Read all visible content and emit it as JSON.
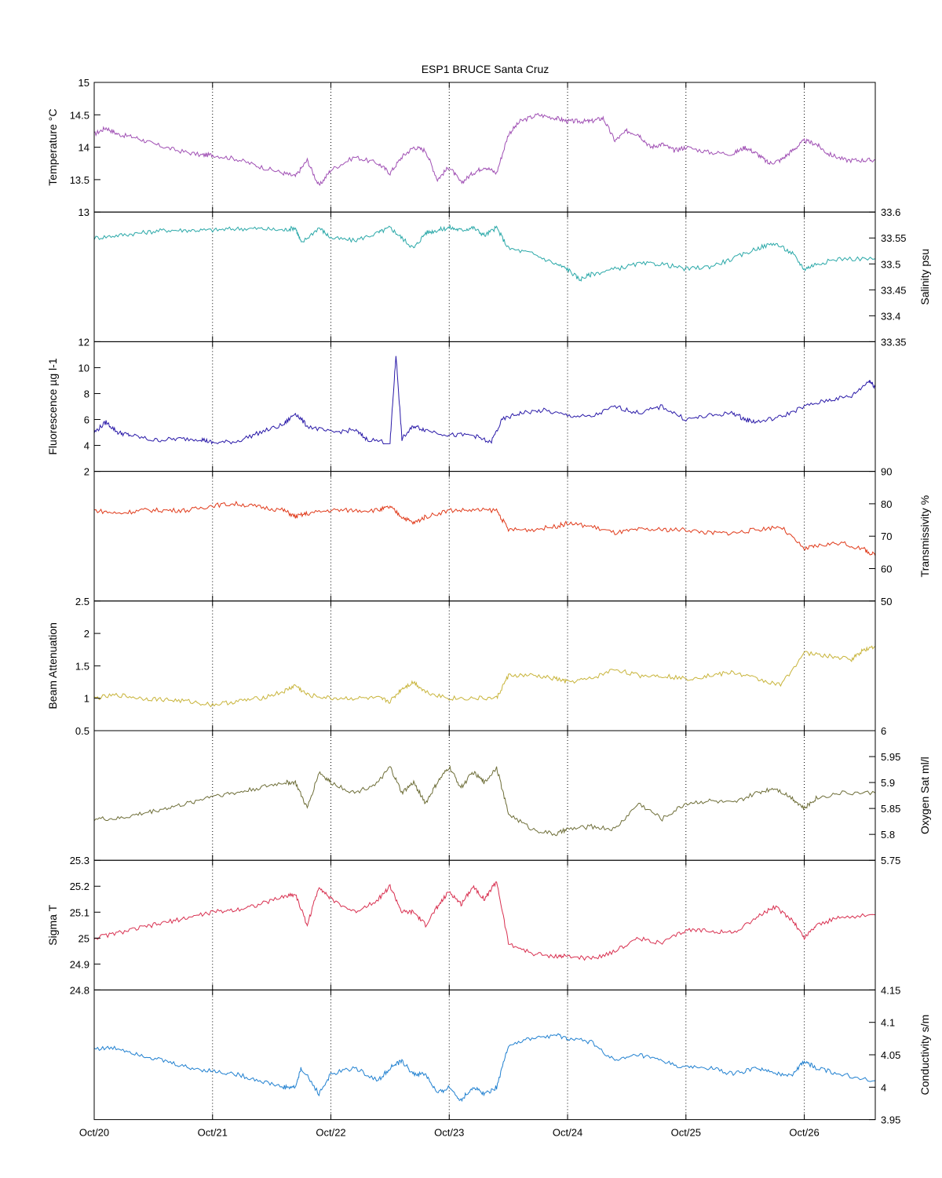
{
  "title": "ESP1 BRUCE Santa Cruz",
  "x_ticks": [
    "Oct/20",
    "Oct/21",
    "Oct/22",
    "Oct/23",
    "Oct/24",
    "Oct/25",
    "Oct/26"
  ],
  "chart_data": {
    "type": "line",
    "title": "ESP1 BRUCE Santa Cruz",
    "x_unit": "day",
    "xlim": [
      "Oct/20",
      "Oct/26 ~15:00"
    ],
    "grid": "vertical dotted at each day tick",
    "panels": [
      {
        "ylabel": "Temperature °C",
        "axis": "left",
        "ylim": [
          13,
          15
        ],
        "yticks": [
          "13",
          "13.5",
          "14",
          "14.5",
          "15"
        ],
        "color": "#a050b4",
        "series": [
          {
            "x": [
              0.0,
              0.1,
              0.2,
              0.35,
              0.5,
              0.7,
              0.9,
              1.0,
              1.2,
              1.4,
              1.6,
              1.7,
              1.8,
              1.9,
              2.0,
              2.2,
              2.4,
              2.5,
              2.6,
              2.7,
              2.8,
              2.9,
              3.0,
              3.1,
              3.2,
              3.3,
              3.4,
              3.5,
              3.6,
              3.75,
              3.9,
              4.0,
              4.1,
              4.2,
              4.3,
              4.4,
              4.5,
              4.6,
              4.7,
              4.8,
              4.9,
              5.0,
              5.2,
              5.4,
              5.5,
              5.6,
              5.7,
              5.8,
              5.9,
              6.0,
              6.1,
              6.2,
              6.35,
              6.5,
              6.6
            ],
            "y": [
              14.2,
              14.3,
              14.2,
              14.15,
              14.05,
              13.95,
              13.88,
              13.88,
              13.82,
              13.7,
              13.6,
              13.55,
              13.8,
              13.4,
              13.65,
              13.85,
              13.75,
              13.6,
              13.85,
              14.0,
              13.95,
              13.5,
              13.7,
              13.45,
              13.6,
              13.7,
              13.6,
              14.2,
              14.4,
              14.5,
              14.45,
              14.4,
              14.4,
              14.4,
              14.45,
              14.1,
              14.25,
              14.2,
              14.0,
              14.05,
              13.95,
              14.0,
              13.92,
              13.9,
              14.0,
              13.9,
              13.75,
              13.8,
              13.95,
              14.1,
              14.05,
              13.9,
              13.8,
              13.8,
              13.8
            ]
          }
        ]
      },
      {
        "ylabel": "Salinity psu",
        "axis": "right",
        "ylim": [
          33.35,
          33.6
        ],
        "yticks": [
          "33.35",
          "33.4",
          "33.45",
          "33.5",
          "33.55",
          "33.6"
        ],
        "color": "#2aa8a8",
        "series": [
          {
            "x": [
              0.0,
              0.2,
              0.4,
              0.6,
              0.8,
              1.0,
              1.2,
              1.4,
              1.6,
              1.7,
              1.75,
              1.9,
              2.0,
              2.2,
              2.4,
              2.5,
              2.6,
              2.7,
              2.8,
              2.9,
              3.0,
              3.1,
              3.2,
              3.3,
              3.4,
              3.5,
              3.7,
              3.9,
              4.0,
              4.1,
              4.2,
              4.4,
              4.6,
              4.8,
              5.0,
              5.2,
              5.4,
              5.6,
              5.75,
              5.9,
              6.0,
              6.1,
              6.3,
              6.6
            ],
            "y": [
              33.55,
              33.555,
              33.56,
              33.565,
              33.565,
              33.565,
              33.568,
              33.568,
              33.565,
              33.57,
              33.54,
              33.57,
              33.55,
              33.545,
              33.56,
              33.57,
              33.55,
              33.53,
              33.56,
              33.565,
              33.57,
              33.565,
              33.57,
              33.555,
              33.57,
              33.53,
              33.52,
              33.5,
              33.49,
              33.47,
              33.48,
              33.49,
              33.5,
              33.5,
              33.49,
              33.495,
              33.51,
              33.53,
              33.54,
              33.52,
              33.49,
              33.5,
              33.51,
              33.51
            ]
          }
        ]
      },
      {
        "ylabel": "Fluorescence µg l-1",
        "axis": "left",
        "ylim": [
          2,
          12
        ],
        "yticks": [
          "2",
          "4",
          "6",
          "8",
          "10",
          "12"
        ],
        "color": "#2a1aa8",
        "series": [
          {
            "x": [
              0.0,
              0.1,
              0.2,
              0.3,
              0.5,
              0.7,
              0.9,
              1.0,
              1.2,
              1.4,
              1.6,
              1.7,
              1.8,
              2.0,
              2.2,
              2.3,
              2.5,
              2.55,
              2.6,
              2.7,
              2.8,
              3.0,
              3.2,
              3.35,
              3.45,
              3.6,
              3.8,
              4.0,
              4.2,
              4.4,
              4.6,
              4.8,
              5.0,
              5.2,
              5.4,
              5.5,
              5.6,
              5.8,
              6.0,
              6.2,
              6.4,
              6.55,
              6.6
            ],
            "y": [
              5.0,
              5.8,
              5.0,
              4.8,
              4.4,
              4.5,
              4.5,
              4.2,
              4.3,
              5.0,
              5.6,
              6.5,
              5.5,
              5.0,
              5.2,
              4.5,
              4.2,
              11.0,
              4.5,
              5.5,
              5.2,
              4.8,
              4.8,
              4.2,
              6.0,
              6.5,
              6.7,
              6.3,
              6.2,
              7.0,
              6.5,
              7.0,
              6.0,
              6.3,
              6.5,
              6.0,
              5.8,
              6.2,
              7.0,
              7.5,
              7.8,
              9.0,
              8.5
            ]
          }
        ]
      },
      {
        "ylabel": "Transmissivity %",
        "axis": "right",
        "ylim": [
          50,
          90
        ],
        "yticks": [
          "50",
          "60",
          "70",
          "80",
          "90"
        ],
        "color": "#e03a1a",
        "series": [
          {
            "x": [
              0.0,
              0.2,
              0.4,
              0.6,
              0.8,
              1.0,
              1.2,
              1.4,
              1.6,
              1.7,
              1.8,
              2.0,
              2.2,
              2.4,
              2.5,
              2.6,
              2.7,
              2.8,
              3.0,
              3.2,
              3.4,
              3.5,
              3.7,
              3.9,
              4.0,
              4.2,
              4.4,
              4.6,
              4.8,
              5.0,
              5.2,
              5.4,
              5.6,
              5.8,
              6.0,
              6.1,
              6.3,
              6.5,
              6.6
            ],
            "y": [
              78,
              77,
              78,
              78,
              78,
              79.5,
              80,
              79,
              78,
              76,
              77,
              78,
              78,
              78,
              79,
              76,
              74,
              76,
              78,
              78,
              78,
              72,
              72,
              73,
              74,
              73,
              71,
              72,
              72,
              72,
              71,
              71,
              72,
              73,
              66,
              67,
              68,
              66,
              64
            ]
          }
        ]
      },
      {
        "ylabel": "Beam Attenuation",
        "axis": "left",
        "ylim": [
          0.5,
          2.5
        ],
        "yticks": [
          "0.5",
          "1",
          "1.5",
          "2",
          "2.5"
        ],
        "color": "#c8b43a",
        "series": [
          {
            "x": [
              0.0,
              0.2,
              0.4,
              0.6,
              0.8,
              1.0,
              1.2,
              1.4,
              1.6,
              1.7,
              1.8,
              2.0,
              2.2,
              2.4,
              2.5,
              2.6,
              2.7,
              2.8,
              3.0,
              3.2,
              3.4,
              3.5,
              3.7,
              3.9,
              4.0,
              4.2,
              4.4,
              4.6,
              4.8,
              5.0,
              5.2,
              5.4,
              5.6,
              5.8,
              6.0,
              6.2,
              6.4,
              6.5,
              6.6
            ],
            "y": [
              1.0,
              1.05,
              1.0,
              0.98,
              0.95,
              0.9,
              0.95,
              1.0,
              1.1,
              1.2,
              1.05,
              1.0,
              1.0,
              1.0,
              0.95,
              1.15,
              1.25,
              1.1,
              1.0,
              1.0,
              1.0,
              1.35,
              1.35,
              1.3,
              1.25,
              1.3,
              1.45,
              1.35,
              1.35,
              1.3,
              1.35,
              1.4,
              1.3,
              1.2,
              1.7,
              1.65,
              1.6,
              1.75,
              1.8
            ]
          }
        ]
      },
      {
        "ylabel": "Oxygen Sat ml/l",
        "axis": "right",
        "ylim": [
          5.75,
          6
        ],
        "yticks": [
          "5.75",
          "5.8",
          "5.85",
          "5.9",
          "5.95",
          "6"
        ],
        "color": "#6e6e38",
        "series": [
          {
            "x": [
              0.0,
              0.2,
              0.4,
              0.6,
              0.8,
              1.0,
              1.2,
              1.4,
              1.6,
              1.7,
              1.8,
              1.9,
              2.0,
              2.2,
              2.4,
              2.5,
              2.6,
              2.7,
              2.8,
              2.9,
              3.0,
              3.1,
              3.2,
              3.3,
              3.4,
              3.5,
              3.7,
              3.9,
              4.0,
              4.2,
              4.4,
              4.6,
              4.8,
              5.0,
              5.2,
              5.4,
              5.6,
              5.75,
              5.9,
              6.0,
              6.1,
              6.3,
              6.6
            ],
            "y": [
              5.83,
              5.83,
              5.84,
              5.85,
              5.86,
              5.875,
              5.88,
              5.89,
              5.9,
              5.9,
              5.85,
              5.92,
              5.9,
              5.88,
              5.9,
              5.93,
              5.88,
              5.9,
              5.86,
              5.9,
              5.93,
              5.89,
              5.92,
              5.9,
              5.93,
              5.84,
              5.81,
              5.8,
              5.81,
              5.815,
              5.81,
              5.86,
              5.83,
              5.86,
              5.865,
              5.86,
              5.88,
              5.89,
              5.87,
              5.85,
              5.87,
              5.88,
              5.88
            ]
          }
        ]
      },
      {
        "ylabel": "Sigma T",
        "axis": "left",
        "ylim": [
          24.8,
          25.3
        ],
        "yticks": [
          "24.8",
          "24.9",
          "25",
          "25.1",
          "25.2",
          "25.3"
        ],
        "color": "#d83050",
        "series": [
          {
            "x": [
              0.0,
              0.2,
              0.4,
              0.6,
              0.8,
              1.0,
              1.2,
              1.4,
              1.6,
              1.7,
              1.8,
              1.9,
              2.0,
              2.2,
              2.4,
              2.5,
              2.6,
              2.7,
              2.8,
              2.9,
              3.0,
              3.1,
              3.2,
              3.3,
              3.4,
              3.5,
              3.7,
              3.9,
              4.0,
              4.2,
              4.4,
              4.6,
              4.8,
              5.0,
              5.2,
              5.4,
              5.6,
              5.75,
              5.9,
              6.0,
              6.1,
              6.3,
              6.6
            ],
            "y": [
              25.0,
              25.02,
              25.04,
              25.06,
              25.08,
              25.1,
              25.11,
              25.13,
              25.16,
              25.17,
              25.05,
              25.2,
              25.15,
              25.1,
              25.15,
              25.2,
              25.1,
              25.1,
              25.05,
              25.12,
              25.18,
              25.13,
              25.2,
              25.15,
              25.22,
              24.98,
              24.94,
              24.93,
              24.93,
              24.92,
              24.95,
              25.0,
              24.98,
              25.03,
              25.03,
              25.02,
              25.08,
              25.12,
              25.07,
              25.0,
              25.05,
              25.08,
              25.09
            ]
          }
        ]
      },
      {
        "ylabel": "Conductivity s/m",
        "axis": "right",
        "ylim": [
          3.95,
          4.15
        ],
        "yticks": [
          "3.95",
          "4",
          "4.05",
          "4.1",
          "4.15"
        ],
        "color": "#2080d0",
        "series": [
          {
            "x": [
              0.0,
              0.2,
              0.4,
              0.6,
              0.8,
              1.0,
              1.2,
              1.4,
              1.6,
              1.7,
              1.75,
              1.9,
              2.0,
              2.2,
              2.4,
              2.5,
              2.6,
              2.7,
              2.8,
              2.9,
              3.0,
              3.1,
              3.2,
              3.3,
              3.4,
              3.5,
              3.7,
              3.9,
              4.0,
              4.2,
              4.4,
              4.6,
              4.8,
              5.0,
              5.2,
              5.4,
              5.6,
              5.75,
              5.9,
              6.0,
              6.1,
              6.3,
              6.6
            ],
            "y": [
              4.06,
              4.06,
              4.05,
              4.04,
              4.03,
              4.025,
              4.02,
              4.01,
              4.0,
              4.0,
              4.03,
              3.99,
              4.02,
              4.03,
              4.01,
              4.03,
              4.04,
              4.02,
              4.02,
              3.99,
              4.0,
              3.98,
              4.0,
              3.99,
              4.0,
              4.065,
              4.075,
              4.08,
              4.075,
              4.07,
              4.04,
              4.05,
              4.04,
              4.03,
              4.03,
              4.02,
              4.03,
              4.02,
              4.02,
              4.04,
              4.03,
              4.02,
              4.01
            ]
          }
        ]
      }
    ]
  }
}
